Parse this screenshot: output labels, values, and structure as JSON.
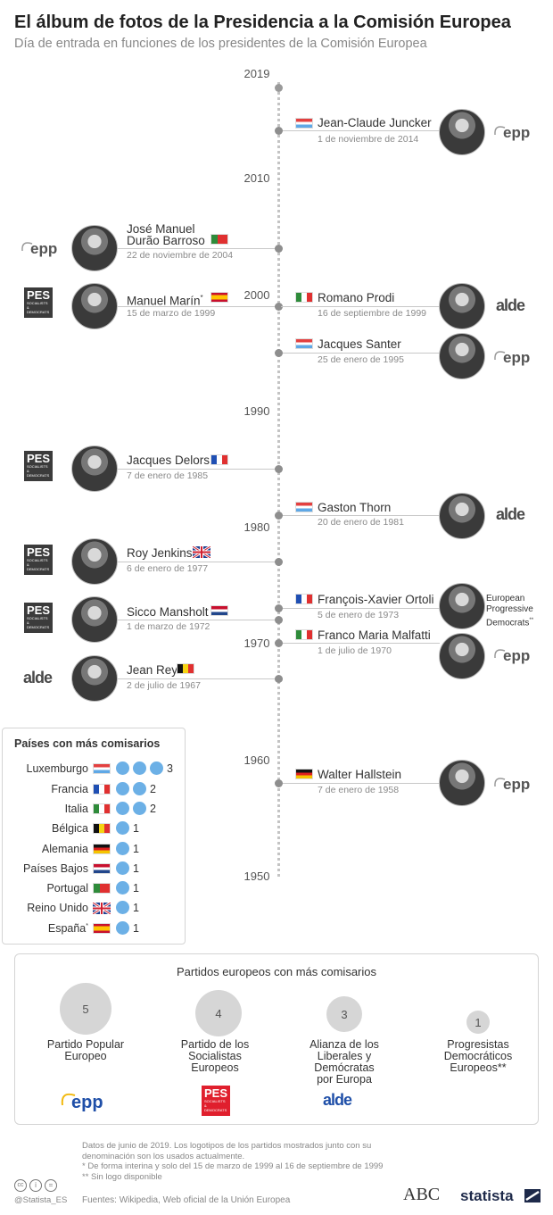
{
  "header": {
    "title": "El álbum de fotos de la Presidencia a la Comisión Europea",
    "subtitle": "Día de entrada en funciones de los presidentes de la Comisión Europea"
  },
  "timeline": {
    "years": [
      "2019",
      "2010",
      "2000",
      "1990",
      "1980",
      "1970",
      "1960",
      "1950"
    ],
    "presidents": [
      {
        "name": "Jean-Claude Juncker",
        "date": "1 de noviembre de 2014",
        "party": "EPP"
      },
      {
        "name_line1": "José Manuel",
        "name_line2": "Durão Barroso",
        "date": "22 de noviembre de 2004",
        "party": "EPP"
      },
      {
        "name": "Manuel Marín",
        "mark": "*",
        "date": "15 de marzo de 1999",
        "party": "PES"
      },
      {
        "name": "Romano Prodi",
        "date": "16 de septiembre de 1999",
        "party": "ALDE"
      },
      {
        "name": "Jacques Santer",
        "date": "25 de enero de 1995",
        "party": "EPP"
      },
      {
        "name": "Jacques Delors",
        "date": "7 de enero de 1985",
        "party": "PES"
      },
      {
        "name": "Gaston Thorn",
        "date": "20 de enero de 1981",
        "party": "ALDE"
      },
      {
        "name": "Roy Jenkins",
        "date": "6 de enero de 1977",
        "party": "PES"
      },
      {
        "name": "François-Xavier Ortoli",
        "date": "5 de enero de 1973",
        "party": "European Progressive Democrats**"
      },
      {
        "name": "Sicco Mansholt",
        "date": "1 de marzo de 1972",
        "party": "PES"
      },
      {
        "name": "Franco Maria Malfatti",
        "date": "1 de julio de 1970",
        "party": "EPP"
      },
      {
        "name": "Jean Rey",
        "date": "2 de julio de 1967",
        "party": "ALDE"
      },
      {
        "name": "Walter Hallstein",
        "date": "7 de enero de 1958",
        "party": "EPP"
      }
    ]
  },
  "logos": {
    "epp": "epp",
    "pes": "PES",
    "pes_sub": "SOCIALISTS & DEMOCRATS",
    "alde": "alde",
    "epd_line1": "European",
    "epd_line2": "Progressive",
    "epd_line3": "Democrats",
    "epd_mark": "**"
  },
  "countries": {
    "title": "Países con más comisarios",
    "rows": [
      {
        "name": "Luxemburgo",
        "count": 3,
        "flag": "lu"
      },
      {
        "name": "Francia",
        "count": 2,
        "flag": "fr"
      },
      {
        "name": "Italia",
        "count": 2,
        "flag": "it"
      },
      {
        "name": "Bélgica",
        "count": 1,
        "flag": "be"
      },
      {
        "name": "Alemania",
        "count": 1,
        "flag": "de"
      },
      {
        "name": "Países Bajos",
        "count": 1,
        "flag": "nl"
      },
      {
        "name": "Portugal",
        "count": 1,
        "flag": "pt"
      },
      {
        "name": "Reino Unido",
        "count": 1,
        "flag": "uk"
      },
      {
        "name": "España",
        "mark": "*",
        "count": 1,
        "flag": "es"
      }
    ]
  },
  "parties": {
    "title": "Partidos europeos con más comisarios",
    "items": [
      {
        "count": "5",
        "label_lines": [
          "Partido Popular",
          "Europeo"
        ]
      },
      {
        "count": "4",
        "label_lines": [
          "Partido de los",
          "Socialistas",
          "Europeos"
        ]
      },
      {
        "count": "3",
        "label_lines": [
          "Alianza de los",
          "Liberales y",
          "Demócratas",
          "por Europa"
        ]
      },
      {
        "count": "1",
        "label_lines": [
          "Progresistas",
          "Democráticos",
          "Europeos**"
        ]
      }
    ]
  },
  "footer": {
    "note1": "Datos de junio de 2019. Los logotipos de los partidos mostrados junto con su",
    "note2": "denominación son los usados actualmente.",
    "note3": "*    De forma interina y solo del 15 de marzo de 1999 al 16 de septiembre de 1999",
    "note4": "** Sin logo disponible",
    "sources": "Fuentes: Wikipedia, Web oficial de la Unión Europea",
    "handle": "@Statista_ES",
    "abc": "ABC",
    "statista": "statista"
  },
  "colors": {
    "accent_dot": "#6cb0e6",
    "bubble": "#d6d6d6",
    "line": "#c8c8c8"
  }
}
